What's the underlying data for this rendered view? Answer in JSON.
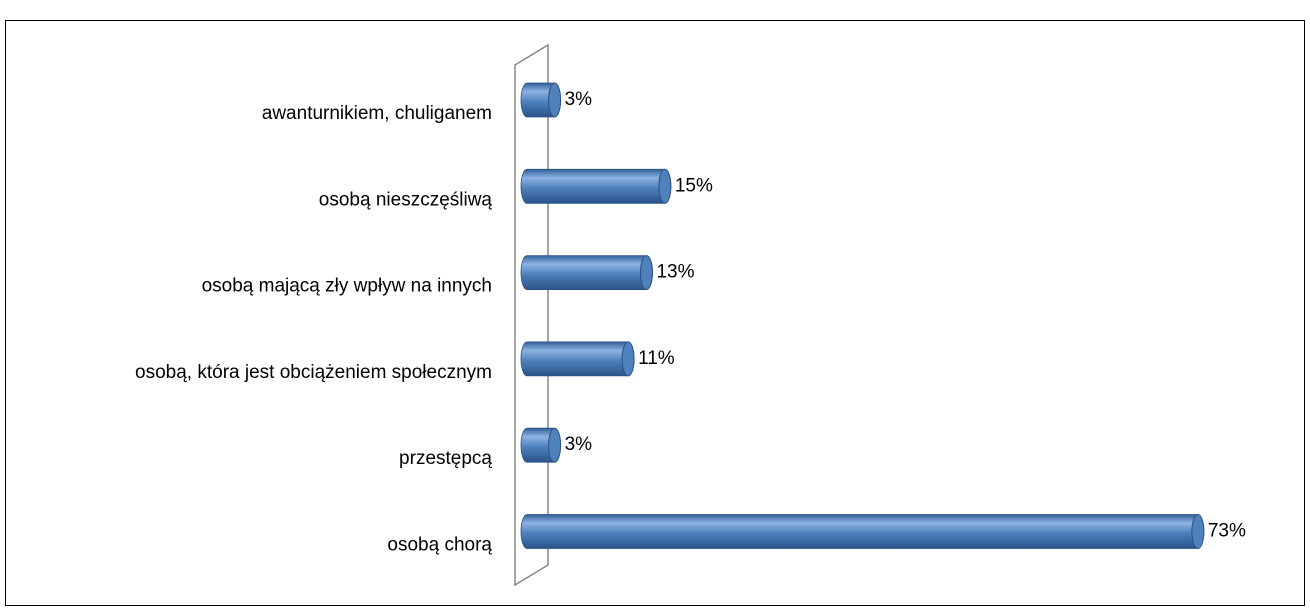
{
  "chart_data": {
    "type": "bar",
    "orientation": "horizontal",
    "categories": [
      "awanturnikiem, chuliganem",
      "osobą nieszczęśliwą",
      "osobą mającą zły wpływ na innych",
      "osobą, która jest obciążeniem społecznym",
      "przestępcą",
      "osobą chorą"
    ],
    "values": [
      3,
      15,
      13,
      11,
      3,
      73
    ],
    "value_labels": [
      "3%",
      "15%",
      "13%",
      "11%",
      "3%",
      "73%"
    ],
    "color": "#4f81bd"
  }
}
